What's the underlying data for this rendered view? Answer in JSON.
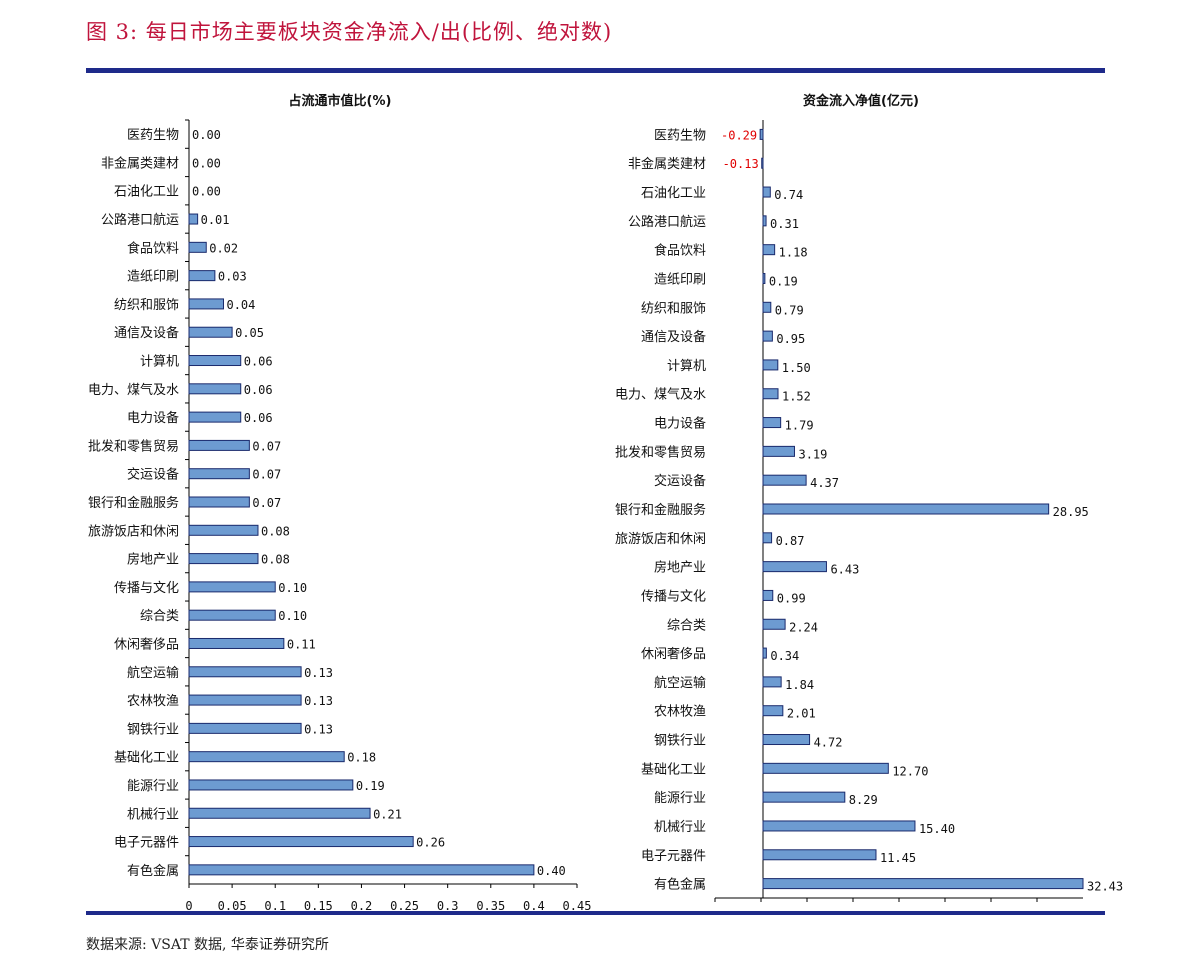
{
  "figure_title": "图 3:  每日市场主要板块资金净流入/出(比例、绝对数)",
  "source": "数据来源:  VSAT 数据,  华泰证券研究所",
  "colors": {
    "title": "#c0143c",
    "rule": "#1e2a8a",
    "bar": "#6d9bd1",
    "bar_stroke": "#1a2a6c",
    "negative_label": "#e00000"
  },
  "chart_data": [
    {
      "type": "bar",
      "orientation": "horizontal",
      "title": "占流通市值比(%)",
      "categories": [
        "医药生物",
        "非金属类建材",
        "石油化工业",
        "公路港口航运",
        "食品饮料",
        "造纸印刷",
        "纺织和服饰",
        "通信及设备",
        "计算机",
        "电力、煤气及水",
        "电力设备",
        "批发和零售贸易",
        "交运设备",
        "银行和金融服务",
        "旅游饭店和休闲",
        "房地产业",
        "传播与文化",
        "综合类",
        "休闲奢侈品",
        "航空运输",
        "农林牧渔",
        "钢铁行业",
        "基础化工业",
        "能源行业",
        "机械行业",
        "电子元器件",
        "有色金属"
      ],
      "values": [
        0.0,
        0.0,
        0.0,
        0.01,
        0.02,
        0.03,
        0.04,
        0.05,
        0.06,
        0.06,
        0.06,
        0.07,
        0.07,
        0.07,
        0.08,
        0.08,
        0.1,
        0.1,
        0.11,
        0.13,
        0.13,
        0.13,
        0.18,
        0.19,
        0.21,
        0.26,
        0.4
      ],
      "value_labels": [
        "0.00",
        "0.00",
        "0.00",
        "0.01",
        "0.02",
        "0.03",
        "0.04",
        "0.05",
        "0.06",
        "0.06",
        "0.06",
        "0.07",
        "0.07",
        "0.07",
        "0.08",
        "0.08",
        "0.10",
        "0.10",
        "0.11",
        "0.13",
        "0.13",
        "0.13",
        "0.18",
        "0.19",
        "0.21",
        "0.26",
        "0.40"
      ],
      "xlim": [
        0,
        0.45
      ],
      "xticks": [
        "0",
        "0.05",
        "0.1",
        "0.15",
        "0.2",
        "0.25",
        "0.3",
        "0.35",
        "0.4",
        "0.45"
      ],
      "grid": false,
      "legend": "none"
    },
    {
      "type": "bar",
      "orientation": "horizontal",
      "title": "资金流入净值(亿元)",
      "categories": [
        "医药生物",
        "非金属类建材",
        "石油化工业",
        "公路港口航运",
        "食品饮料",
        "造纸印刷",
        "纺织和服饰",
        "通信及设备",
        "计算机",
        "电力、煤气及水",
        "电力设备",
        "批发和零售贸易",
        "交运设备",
        "银行和金融服务",
        "旅游饭店和休闲",
        "房地产业",
        "传播与文化",
        "综合类",
        "休闲奢侈品",
        "航空运输",
        "农林牧渔",
        "钢铁行业",
        "基础化工业",
        "能源行业",
        "机械行业",
        "电子元器件",
        "有色金属"
      ],
      "values": [
        -0.29,
        -0.13,
        0.74,
        0.31,
        1.18,
        0.19,
        0.79,
        0.95,
        1.5,
        1.52,
        1.79,
        3.19,
        4.37,
        28.95,
        0.87,
        6.43,
        0.99,
        2.24,
        0.34,
        1.84,
        2.01,
        4.72,
        12.7,
        8.29,
        15.4,
        11.45,
        32.43
      ],
      "value_labels": [
        "-0.29",
        "-0.13",
        "0.74",
        "0.31",
        "1.18",
        "0.19",
        "0.79",
        "0.95",
        "1.50",
        "1.52",
        "1.79",
        "3.19",
        "4.37",
        "28.95",
        "0.87",
        "6.43",
        "0.99",
        "2.24",
        "0.34",
        "1.84",
        "2.01",
        "4.72",
        "12.70",
        "8.29",
        "15.40",
        "11.45",
        "32.43"
      ],
      "xlim": [
        0,
        32.43
      ],
      "grid": false,
      "legend": "none"
    }
  ]
}
